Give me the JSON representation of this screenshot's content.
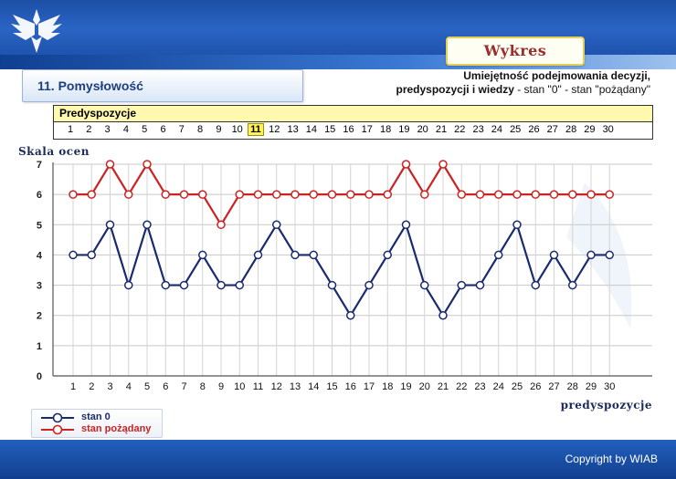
{
  "section": {
    "title": "11. Pomysłowość"
  },
  "wykres_button": {
    "label": "Wykres"
  },
  "subtitle": {
    "line1": "Umiejętność podejmowania decyzji,",
    "line2_bold": "predyspozycji i wiedzy",
    "line2_rest": " - stan \"0\" - stan \"pożądany\""
  },
  "predyspozycje_table": {
    "title": "Predyspozycje",
    "numbers": [
      "1",
      "2",
      "3",
      "4",
      "5",
      "6",
      "7",
      "8",
      "9",
      "10",
      "11",
      "12",
      "13",
      "14",
      "15",
      "16",
      "17",
      "18",
      "19",
      "20",
      "21",
      "22",
      "23",
      "24",
      "25",
      "26",
      "27",
      "28",
      "29",
      "30"
    ],
    "selected": "11"
  },
  "legend": {
    "items": [
      {
        "label": "stan 0",
        "color": "#1a2a6e"
      },
      {
        "label": "stan pożądany",
        "color": "#cc2222"
      }
    ]
  },
  "copyright": "Copyright by WIAB",
  "chart_data": {
    "type": "line",
    "ylabel": "Skala ocen",
    "xlabel": "predyspozycje",
    "x": [
      1,
      2,
      3,
      4,
      5,
      6,
      7,
      8,
      9,
      10,
      11,
      12,
      13,
      14,
      15,
      16,
      17,
      18,
      19,
      20,
      21,
      22,
      23,
      24,
      25,
      26,
      27,
      28,
      29,
      30
    ],
    "ylim": [
      0,
      7
    ],
    "yticks": [
      0,
      1,
      2,
      3,
      4,
      5,
      6,
      7
    ],
    "grid": true,
    "series": [
      {
        "name": "stan 0",
        "color": "#1a2a6e",
        "values": [
          4,
          4,
          5,
          3,
          5,
          3,
          3,
          4,
          3,
          3,
          4,
          5,
          4,
          4,
          3,
          2,
          3,
          4,
          5,
          3,
          2,
          3,
          3,
          4,
          5,
          3,
          4,
          3,
          4,
          4
        ]
      },
      {
        "name": "stan pożądany",
        "color": "#cc2222",
        "values": [
          6,
          6,
          7,
          6,
          7,
          6,
          6,
          6,
          5,
          6,
          6,
          6,
          6,
          6,
          6,
          6,
          6,
          6,
          7,
          6,
          7,
          6,
          6,
          6,
          6,
          6,
          6,
          6,
          6,
          6
        ]
      }
    ]
  }
}
